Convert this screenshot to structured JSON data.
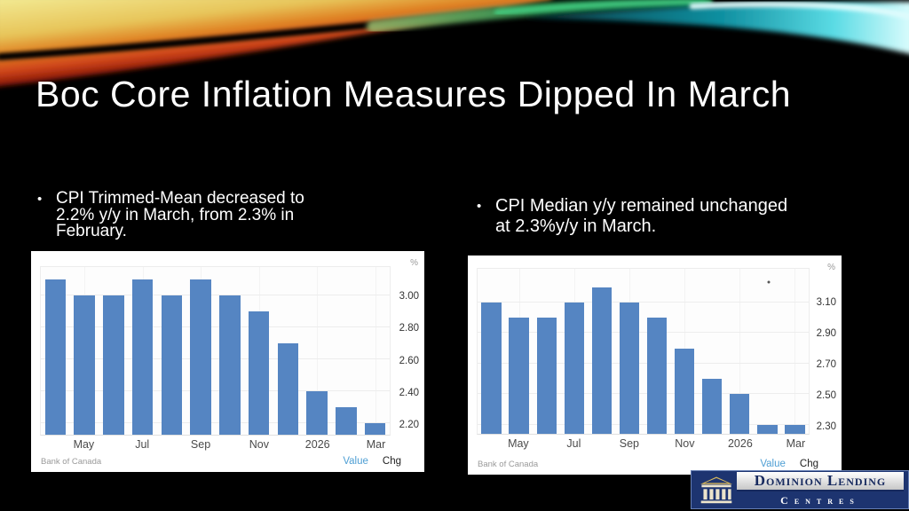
{
  "slide": {
    "title": "Boc Core Inflation Measures Dipped In March",
    "bullets": [
      {
        "marker": "•",
        "lines": [
          "CPI Trimmed-Mean decreased to",
          "2.2% y/y in March, from 2.3% in",
          "February."
        ]
      },
      {
        "marker": "•",
        "lines": [
          "CPI Median y/y remained unchanged",
          "at 2.3%y/y in March."
        ]
      }
    ]
  },
  "logo": {
    "name": "Dominion Lending",
    "subtitle": "Centres",
    "brand_navy": "#1d3470"
  },
  "chart_data": [
    {
      "type": "bar",
      "unit": "%",
      "source": "Bank of Canada",
      "footer_links": [
        "Value",
        "Chg"
      ],
      "x_tick_labels": [
        "May",
        "Jul",
        "Sep",
        "Nov",
        "2026",
        "Mar"
      ],
      "x_tick_slots": [
        1,
        3,
        5,
        7,
        9,
        11
      ],
      "values": [
        3.1,
        3.0,
        3.0,
        3.1,
        3.0,
        3.1,
        3.0,
        2.9,
        2.7,
        2.4,
        2.3,
        2.2
      ],
      "yticks": [
        "2.20",
        "2.40",
        "2.60",
        "2.80",
        "3.00"
      ],
      "ylim": [
        2.13,
        3.18
      ],
      "grid": true,
      "legend": "none",
      "bar_color": "#5585c2",
      "value_link_color": "#4f9fd4"
    },
    {
      "type": "bar",
      "unit": "%",
      "source": "Bank of Canada",
      "footer_links": [
        "Value",
        "Chg"
      ],
      "x_tick_labels": [
        "May",
        "Jul",
        "Sep",
        "Nov",
        "2026",
        "Mar"
      ],
      "x_tick_slots": [
        1,
        3,
        5,
        7,
        9,
        11
      ],
      "values": [
        3.1,
        3.0,
        3.0,
        3.1,
        3.2,
        3.1,
        3.0,
        2.8,
        2.6,
        2.5,
        2.3,
        2.3
      ],
      "yticks": [
        "2.30",
        "2.50",
        "2.70",
        "2.90",
        "3.10"
      ],
      "ylim": [
        2.24,
        3.32
      ],
      "grid": true,
      "legend": "none",
      "bar_color": "#5585c2",
      "value_link_color": "#4f9fd4",
      "marker_dot": {
        "x_frac": 0.88,
        "y_frac": 0.08
      }
    }
  ]
}
